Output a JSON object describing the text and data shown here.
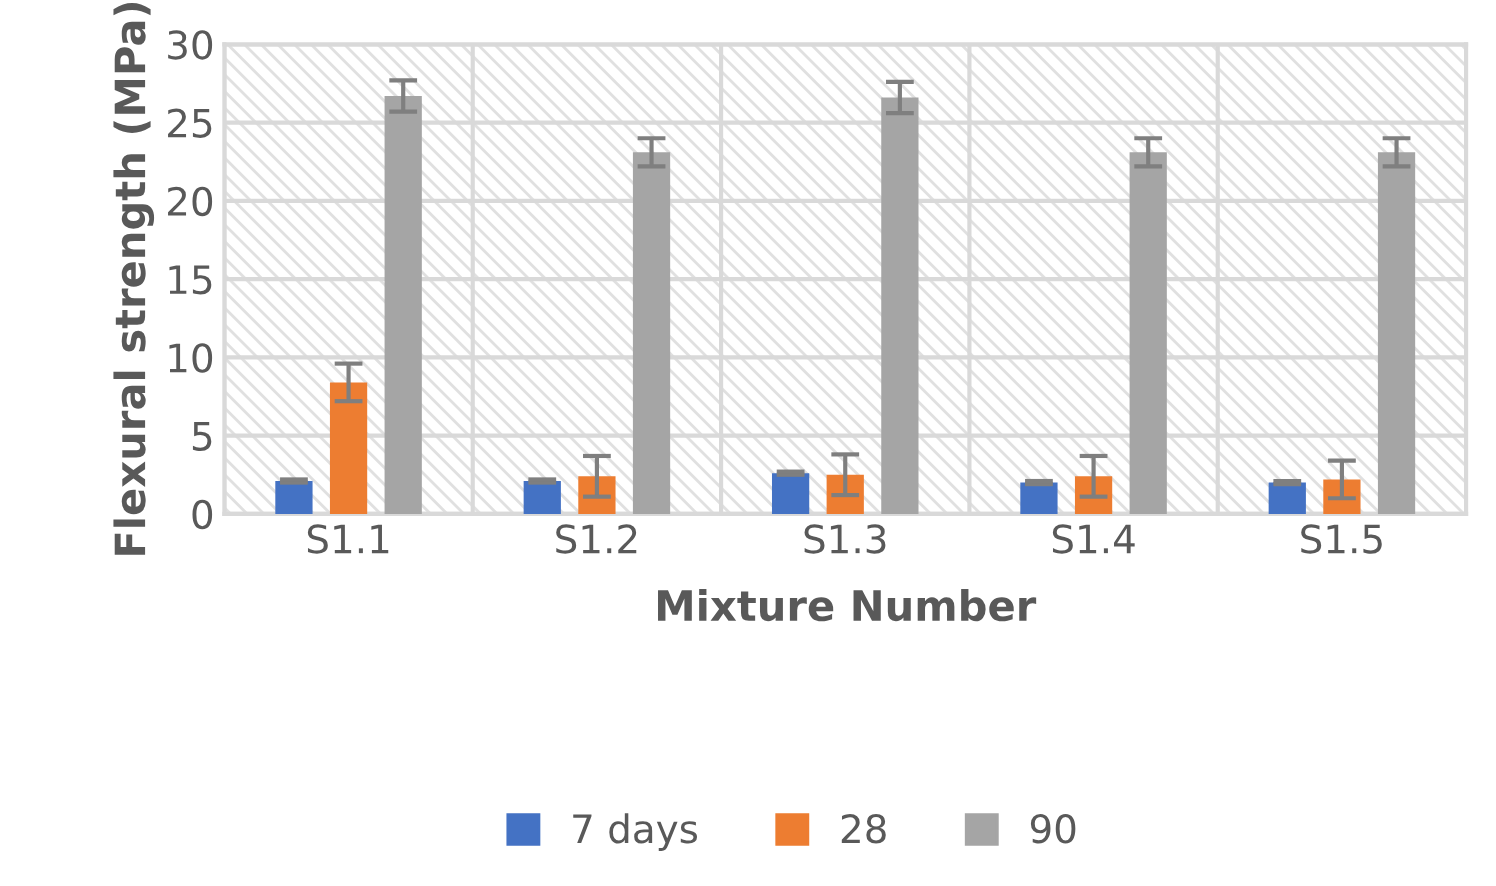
{
  "chart_data": {
    "type": "bar",
    "xlabel": "Mixture Number",
    "ylabel": "Flexural strength (MPa)",
    "categories": [
      "S1.1",
      "S1.2",
      "S1.3",
      "S1.4",
      "S1.5"
    ],
    "series": [
      {
        "name": "7 days",
        "color": "#4472c4",
        "values": [
          2.1,
          2.1,
          2.6,
          2.0,
          2.0
        ],
        "errors": [
          0.1,
          0.1,
          0.1,
          0.1,
          0.1
        ]
      },
      {
        "name": "28",
        "color": "#ed7d31",
        "values": [
          8.4,
          2.4,
          2.5,
          2.4,
          2.2
        ],
        "errors": [
          1.2,
          1.3,
          1.3,
          1.3,
          1.2
        ]
      },
      {
        "name": "90",
        "color": "#a5a5a5",
        "values": [
          26.7,
          23.1,
          26.6,
          23.1,
          23.1
        ],
        "errors": [
          1.0,
          0.9,
          1.0,
          0.9,
          0.9
        ]
      }
    ],
    "ylim": [
      0,
      30
    ],
    "yticks": [
      0,
      5,
      10,
      15,
      20,
      25,
      30
    ],
    "grid": true,
    "legend": "bottom"
  }
}
